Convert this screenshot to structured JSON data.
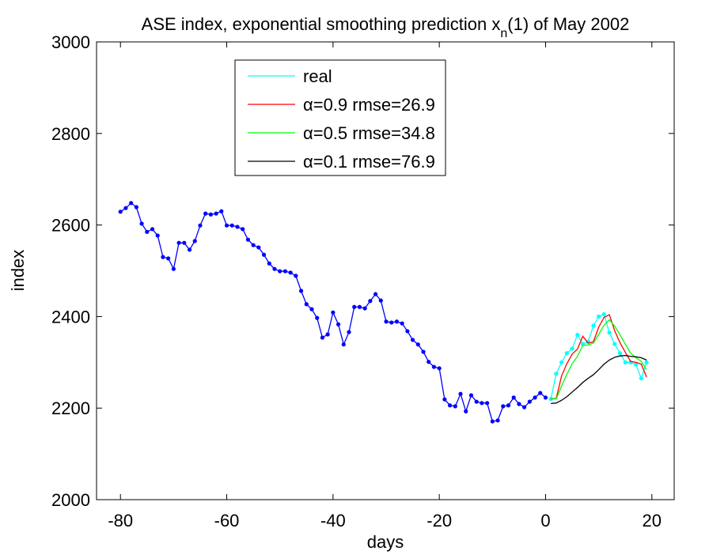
{
  "chart_data": {
    "type": "line",
    "title": {
      "main": "ASE index, exponential smoothing prediction x",
      "subscript": "n",
      "tail": "(1) of May 2002"
    },
    "xlabel": "days",
    "ylabel": "index",
    "xlim": [
      -84.5,
      24.2
    ],
    "ylim": [
      2000,
      3000
    ],
    "xticks": [
      -80,
      -60,
      -40,
      -20,
      0,
      20
    ],
    "yticks": [
      2000,
      2200,
      2400,
      2600,
      2800,
      3000
    ],
    "legend": "upper center",
    "series": [
      {
        "color": "#0000ff",
        "markers": true,
        "x": [
          -80,
          -79,
          -78,
          -77,
          -76,
          -75,
          -74,
          -73,
          -72,
          -71,
          -70,
          -69,
          -68,
          -67,
          -66,
          -65,
          -64,
          -63,
          -62,
          -61,
          -60,
          -59,
          -58,
          -57,
          -56,
          -55,
          -54,
          -53,
          -52,
          -51,
          -50,
          -49,
          -48,
          -47,
          -46,
          -45,
          -44,
          -43,
          -42,
          -41,
          -40,
          -39,
          -38,
          -37,
          -36,
          -35,
          -34,
          -33,
          -32,
          -31,
          -30,
          -29,
          -28,
          -27,
          -26,
          -25,
          -24,
          -23,
          -22,
          -21,
          -20,
          -19,
          -18,
          -17,
          -16,
          -15,
          -14,
          -13,
          -12,
          -11,
          -10,
          -9,
          -8,
          -7,
          -6,
          -5,
          -4,
          -3,
          -2,
          -1,
          0
        ],
        "values": [
          2629,
          2637,
          2648,
          2639,
          2603,
          2585,
          2591,
          2577,
          2530,
          2527,
          2504,
          2561,
          2561,
          2546,
          2565,
          2599,
          2625,
          2623,
          2625,
          2630,
          2599,
          2599,
          2596,
          2591,
          2568,
          2556,
          2551,
          2535,
          2516,
          2504,
          2499,
          2499,
          2496,
          2489,
          2456,
          2427,
          2416,
          2397,
          2354,
          2361,
          2409,
          2383,
          2339,
          2366,
          2421,
          2421,
          2418,
          2434,
          2449,
          2435,
          2389,
          2387,
          2389,
          2385,
          2368,
          2349,
          2339,
          2323,
          2301,
          2290,
          2287,
          2219,
          2206,
          2204,
          2231,
          2193,
          2228,
          2214,
          2211,
          2211,
          2171,
          2173,
          2204,
          2206,
          2223,
          2209,
          2202,
          2214,
          2223,
          2233,
          2223
        ]
      },
      {
        "name": "real",
        "color": "#00ffff",
        "markers": true,
        "x": [
          1,
          2,
          3,
          4,
          5,
          6,
          7,
          8,
          9,
          10,
          11,
          12,
          13,
          14,
          15,
          16,
          17,
          18,
          19
        ],
        "values": [
          2220,
          2275,
          2300,
          2320,
          2330,
          2360,
          2340,
          2345,
          2380,
          2400,
          2405,
          2365,
          2340,
          2320,
          2300,
          2300,
          2295,
          2265,
          2300
        ]
      },
      {
        "name": "α=0.9 rmse=26.9",
        "color": "#ff0000",
        "markers": false,
        "x": [
          1,
          2,
          3,
          4,
          5,
          6,
          7,
          8,
          9,
          10,
          11,
          12,
          13,
          14,
          15,
          16,
          17,
          18,
          19
        ],
        "values": [
          2220,
          2221,
          2270,
          2297,
          2318,
          2329,
          2357,
          2342,
          2345,
          2377,
          2398,
          2404,
          2369,
          2343,
          2322,
          2302,
          2300,
          2296,
          2268
        ]
      },
      {
        "name": "α=0.5 rmse=34.8",
        "color": "#00ff00",
        "markers": false,
        "x": [
          1,
          2,
          3,
          4,
          5,
          6,
          7,
          8,
          9,
          10,
          11,
          12,
          13,
          14,
          15,
          16,
          17,
          18,
          19
        ],
        "values": [
          2220,
          2220,
          2248,
          2274,
          2297,
          2313,
          2337,
          2338,
          2342,
          2361,
          2381,
          2393,
          2379,
          2360,
          2340,
          2320,
          2310,
          2302,
          2284
        ]
      },
      {
        "name": "α=0.1 rmse=76.9",
        "color": "#000000",
        "markers": false,
        "x": [
          1,
          2,
          3,
          4,
          5,
          6,
          7,
          8,
          9,
          10,
          11,
          12,
          13,
          14,
          15,
          16,
          17,
          18,
          19
        ],
        "values": [
          2210,
          2211,
          2217,
          2225,
          2235,
          2245,
          2256,
          2265,
          2273,
          2284,
          2296,
          2305,
          2311,
          2314,
          2315,
          2313,
          2312,
          2310,
          2305
        ]
      }
    ]
  }
}
